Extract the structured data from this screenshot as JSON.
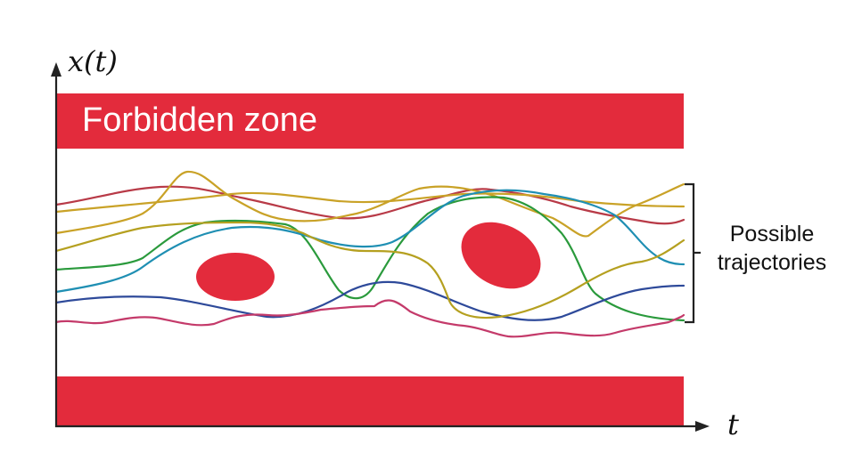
{
  "labels": {
    "y_axis": "x(t)",
    "x_axis": "t",
    "forbidden_zone": "Forbidden zone",
    "trajectories_line1": "Possible",
    "trajectories_line2": "trajectories"
  },
  "colors": {
    "forbidden": "#e32b3c",
    "axis": "#222222",
    "trajectories": [
      "#b83a47",
      "#c9a227",
      "#2a9a3c",
      "#1f8fb3",
      "#2e4a9a",
      "#c43a6a",
      "#b5a020"
    ]
  }
}
